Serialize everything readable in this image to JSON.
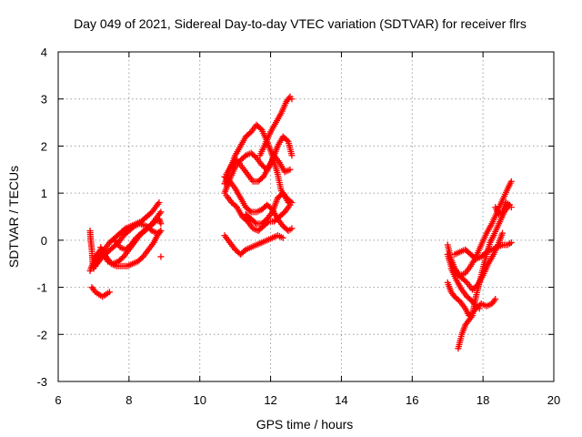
{
  "chart_data": {
    "type": "scatter",
    "title": "Day 049 of 2021, Sidereal Day-to-day VTEC variation (SDTVAR) for receiver flrs",
    "xlabel": "GPS time / hours",
    "ylabel": "SDTVAR / TECUs",
    "xlim": [
      6,
      20
    ],
    "ylim": [
      -3,
      4
    ],
    "xticks": [
      "6",
      "8",
      "10",
      "12",
      "14",
      "16",
      "18",
      "20"
    ],
    "yticks": [
      "-3",
      "-2",
      "-1",
      "0",
      "1",
      "2",
      "3",
      "4"
    ],
    "grid": true,
    "marker": "plus",
    "series": [
      {
        "color": "#ff0000",
        "segments": [
          [
            [
              6.9,
              0.2
            ],
            [
              6.92,
              0.0
            ],
            [
              6.95,
              -0.2
            ],
            [
              6.97,
              -0.45
            ],
            [
              7.0,
              -0.6
            ],
            [
              7.05,
              -0.55
            ]
          ],
          [
            [
              6.9,
              -0.65
            ],
            [
              7.0,
              -0.45
            ],
            [
              7.1,
              -0.3
            ],
            [
              7.2,
              -0.2
            ],
            [
              7.3,
              -0.3
            ],
            [
              7.4,
              -0.45
            ],
            [
              7.55,
              -0.5
            ],
            [
              7.7,
              -0.45
            ],
            [
              7.85,
              -0.35
            ],
            [
              8.0,
              -0.2
            ],
            [
              8.15,
              -0.05
            ],
            [
              8.3,
              0.1
            ],
            [
              8.45,
              0.2
            ],
            [
              8.6,
              0.3
            ],
            [
              8.75,
              0.4
            ],
            [
              8.85,
              0.45
            ],
            [
              8.9,
              0.35
            ]
          ],
          [
            [
              7.0,
              -0.6
            ],
            [
              7.15,
              -0.4
            ],
            [
              7.3,
              -0.2
            ],
            [
              7.45,
              -0.05
            ],
            [
              7.6,
              0.05
            ],
            [
              7.75,
              0.15
            ],
            [
              7.9,
              0.25
            ],
            [
              8.05,
              0.3
            ],
            [
              8.2,
              0.35
            ],
            [
              8.35,
              0.4
            ],
            [
              8.5,
              0.5
            ],
            [
              8.65,
              0.6
            ],
            [
              8.75,
              0.7
            ],
            [
              8.85,
              0.8
            ]
          ],
          [
            [
              7.1,
              -0.5
            ],
            [
              7.25,
              -0.35
            ],
            [
              7.4,
              -0.25
            ],
            [
              7.55,
              -0.15
            ],
            [
              7.7,
              -0.05
            ],
            [
              7.85,
              0.1
            ],
            [
              8.0,
              0.2
            ],
            [
              8.15,
              0.3
            ],
            [
              8.3,
              0.35
            ],
            [
              8.5,
              0.3
            ],
            [
              8.65,
              0.2
            ],
            [
              8.8,
              0.15
            ],
            [
              8.9,
              0.2
            ]
          ],
          [
            [
              7.2,
              -0.15
            ],
            [
              7.35,
              -0.35
            ],
            [
              7.5,
              -0.5
            ],
            [
              7.65,
              -0.55
            ],
            [
              7.8,
              -0.55
            ],
            [
              7.95,
              -0.55
            ],
            [
              8.1,
              -0.5
            ],
            [
              8.25,
              -0.45
            ],
            [
              8.4,
              -0.35
            ],
            [
              8.55,
              -0.2
            ],
            [
              8.7,
              -0.05
            ],
            [
              8.8,
              0.1
            ],
            [
              8.9,
              0.2
            ]
          ],
          [
            [
              6.95,
              -1.0
            ],
            [
              7.05,
              -1.1
            ],
            [
              7.15,
              -1.15
            ],
            [
              7.25,
              -1.2
            ],
            [
              7.35,
              -1.15
            ],
            [
              7.45,
              -1.1
            ]
          ],
          [
            [
              7.6,
              0.0
            ],
            [
              7.75,
              -0.15
            ],
            [
              7.9,
              -0.2
            ],
            [
              8.05,
              -0.1
            ],
            [
              8.2,
              0.05
            ],
            [
              8.35,
              0.15
            ],
            [
              8.5,
              0.25
            ],
            [
              8.65,
              0.35
            ],
            [
              8.8,
              0.5
            ],
            [
              8.9,
              0.6
            ]
          ],
          [
            [
              8.9,
              -0.35
            ]
          ],
          [
            [
              10.7,
              1.2
            ],
            [
              10.85,
              1.5
            ],
            [
              11.0,
              1.8
            ],
            [
              11.15,
              2.0
            ],
            [
              11.3,
              2.2
            ],
            [
              11.45,
              2.3
            ],
            [
              11.6,
              2.45
            ],
            [
              11.75,
              2.35
            ],
            [
              11.9,
              2.1
            ],
            [
              12.05,
              1.8
            ],
            [
              12.2,
              1.4
            ],
            [
              12.3,
              1.05
            ],
            [
              12.45,
              0.9
            ],
            [
              12.6,
              0.8
            ]
          ],
          [
            [
              10.7,
              1.35
            ],
            [
              10.85,
              1.25
            ],
            [
              11.0,
              1.1
            ],
            [
              11.15,
              0.9
            ],
            [
              11.3,
              0.7
            ],
            [
              11.45,
              0.6
            ],
            [
              11.6,
              0.6
            ],
            [
              11.75,
              0.65
            ],
            [
              11.9,
              0.75
            ],
            [
              12.05,
              0.65
            ],
            [
              12.2,
              0.45
            ],
            [
              12.35,
              0.3
            ],
            [
              12.5,
              0.2
            ],
            [
              12.6,
              0.25
            ]
          ],
          [
            [
              10.7,
              1.0
            ],
            [
              10.85,
              1.3
            ],
            [
              11.0,
              1.55
            ],
            [
              11.15,
              1.7
            ],
            [
              11.3,
              1.8
            ],
            [
              11.45,
              1.85
            ],
            [
              11.6,
              1.75
            ],
            [
              11.75,
              1.6
            ],
            [
              11.9,
              1.5
            ],
            [
              12.05,
              1.7
            ],
            [
              12.2,
              2.0
            ],
            [
              12.35,
              2.2
            ],
            [
              12.5,
              2.1
            ],
            [
              12.6,
              1.8
            ]
          ],
          [
            [
              10.75,
              1.4
            ],
            [
              10.9,
              1.6
            ],
            [
              11.05,
              1.7
            ],
            [
              11.2,
              1.55
            ],
            [
              11.35,
              1.4
            ],
            [
              11.5,
              1.25
            ],
            [
              11.65,
              1.25
            ],
            [
              11.8,
              1.35
            ],
            [
              11.95,
              1.55
            ],
            [
              12.1,
              1.8
            ],
            [
              12.25,
              1.65
            ],
            [
              12.4,
              1.45
            ],
            [
              12.55,
              1.5
            ]
          ],
          [
            [
              10.7,
              0.1
            ],
            [
              10.85,
              -0.05
            ],
            [
              11.0,
              -0.2
            ],
            [
              11.15,
              -0.3
            ],
            [
              11.3,
              -0.2
            ],
            [
              11.45,
              -0.15
            ],
            [
              11.6,
              -0.1
            ],
            [
              11.75,
              -0.05
            ],
            [
              11.9,
              0.0
            ],
            [
              12.05,
              0.05
            ],
            [
              12.2,
              0.1
            ],
            [
              12.35,
              0.05
            ]
          ],
          [
            [
              11.3,
              0.55
            ],
            [
              11.45,
              0.45
            ],
            [
              11.6,
              0.35
            ],
            [
              11.75,
              0.35
            ],
            [
              11.9,
              0.45
            ],
            [
              12.05,
              0.6
            ],
            [
              12.2,
              0.9
            ],
            [
              12.35,
              1.0
            ],
            [
              12.5,
              0.8
            ]
          ],
          [
            [
              11.7,
              1.8
            ],
            [
              11.85,
              2.05
            ],
            [
              12.0,
              2.3
            ],
            [
              12.15,
              2.5
            ],
            [
              12.3,
              2.7
            ],
            [
              12.45,
              2.95
            ],
            [
              12.55,
              3.05
            ],
            [
              12.6,
              3.0
            ]
          ],
          [
            [
              10.75,
              0.95
            ],
            [
              10.9,
              0.8
            ],
            [
              11.05,
              0.7
            ],
            [
              11.2,
              0.5
            ],
            [
              11.35,
              0.4
            ],
            [
              11.5,
              0.25
            ],
            [
              11.65,
              0.2
            ],
            [
              11.8,
              0.3
            ],
            [
              11.95,
              0.4
            ],
            [
              12.1,
              0.4
            ],
            [
              12.25,
              0.5
            ],
            [
              12.4,
              0.6
            ],
            [
              12.55,
              0.75
            ]
          ],
          [
            [
              17.0,
              -0.1
            ],
            [
              17.1,
              -0.4
            ],
            [
              17.2,
              -0.6
            ],
            [
              17.35,
              -0.75
            ],
            [
              17.5,
              -0.7
            ],
            [
              17.65,
              -0.55
            ],
            [
              17.8,
              -0.35
            ],
            [
              17.95,
              -0.1
            ],
            [
              18.1,
              0.15
            ],
            [
              18.25,
              0.35
            ],
            [
              18.4,
              0.6
            ],
            [
              18.55,
              0.85
            ],
            [
              18.7,
              1.1
            ],
            [
              18.8,
              1.25
            ]
          ],
          [
            [
              17.0,
              -0.9
            ],
            [
              17.1,
              -1.1
            ],
            [
              17.2,
              -1.2
            ],
            [
              17.35,
              -1.3
            ],
            [
              17.5,
              -1.45
            ],
            [
              17.6,
              -1.6
            ],
            [
              17.7,
              -1.55
            ],
            [
              17.8,
              -1.45
            ],
            [
              17.95,
              -1.35
            ],
            [
              18.1,
              -1.4
            ],
            [
              18.25,
              -1.35
            ],
            [
              18.35,
              -1.25
            ]
          ],
          [
            [
              17.3,
              -2.3
            ],
            [
              17.4,
              -2.0
            ],
            [
              17.5,
              -1.8
            ],
            [
              17.6,
              -1.7
            ],
            [
              17.7,
              -1.6
            ],
            [
              17.8,
              -1.2
            ],
            [
              17.9,
              -0.9
            ],
            [
              18.0,
              -0.6
            ],
            [
              18.1,
              -0.3
            ],
            [
              18.2,
              -0.05
            ],
            [
              18.3,
              0.1
            ],
            [
              18.45,
              0.35
            ],
            [
              18.6,
              0.6
            ],
            [
              18.75,
              0.75
            ]
          ],
          [
            [
              17.2,
              -0.3
            ],
            [
              17.35,
              -0.25
            ],
            [
              17.5,
              -0.2
            ],
            [
              17.65,
              -0.3
            ],
            [
              17.8,
              -0.4
            ],
            [
              17.95,
              -0.35
            ],
            [
              18.1,
              -0.25
            ],
            [
              18.25,
              -0.2
            ],
            [
              18.4,
              -0.15
            ],
            [
              18.55,
              -0.1
            ],
            [
              18.7,
              -0.1
            ],
            [
              18.8,
              -0.05
            ]
          ],
          [
            [
              17.0,
              -0.3
            ],
            [
              17.1,
              -0.55
            ],
            [
              17.25,
              -0.7
            ],
            [
              17.4,
              -0.8
            ],
            [
              17.55,
              -0.9
            ],
            [
              17.7,
              -1.05
            ],
            [
              17.85,
              -0.95
            ],
            [
              18.0,
              -0.75
            ],
            [
              18.15,
              -0.5
            ],
            [
              18.3,
              -0.3
            ],
            [
              18.45,
              -0.05
            ],
            [
              18.55,
              0.15
            ]
          ],
          [
            [
              17.1,
              -0.6
            ],
            [
              17.25,
              -0.85
            ],
            [
              17.4,
              -1.05
            ],
            [
              17.55,
              -1.2
            ],
            [
              17.7,
              -1.3
            ],
            [
              17.8,
              -1.4
            ],
            [
              17.9,
              -1.45
            ]
          ],
          [
            [
              18.35,
              0.7
            ],
            [
              18.45,
              0.55
            ],
            [
              18.55,
              0.6
            ],
            [
              18.65,
              0.8
            ],
            [
              18.75,
              0.75
            ],
            [
              18.8,
              0.7
            ]
          ]
        ]
      }
    ]
  }
}
